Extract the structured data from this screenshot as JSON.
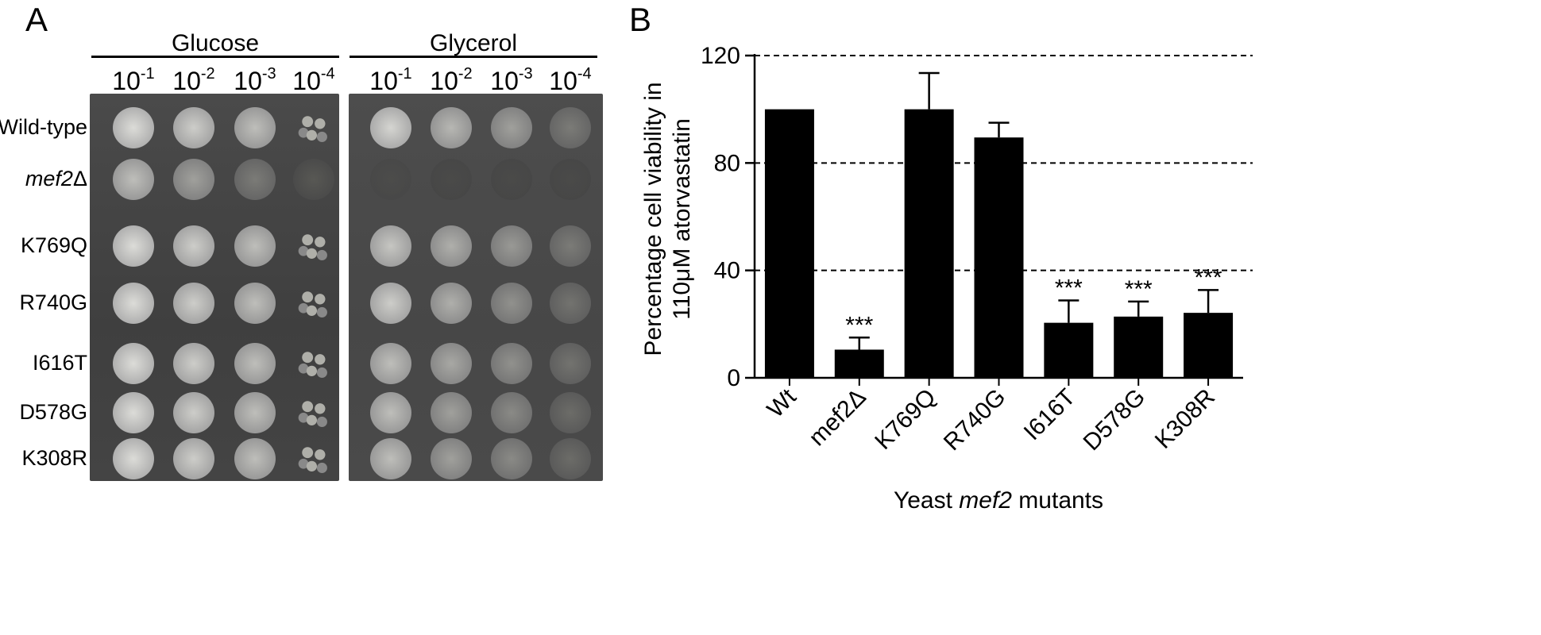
{
  "panels": {
    "a_label": "A",
    "b_label": "B"
  },
  "plate_figure": {
    "conditions": [
      "Glucose",
      "Glycerol"
    ],
    "dilution_base": "10",
    "dilution_exponents": [
      "-1",
      "-2",
      "-3",
      "-4"
    ],
    "strains": [
      {
        "prefix": "Wild-type",
        "italic": "",
        "suffix": ""
      },
      {
        "prefix": "",
        "italic": "mef2",
        "suffix": "Δ"
      },
      {
        "prefix": "K769Q",
        "italic": "",
        "suffix": ""
      },
      {
        "prefix": "R740G",
        "italic": "",
        "suffix": ""
      },
      {
        "prefix": "I616T",
        "italic": "",
        "suffix": ""
      },
      {
        "prefix": "D578G",
        "italic": "",
        "suffix": ""
      },
      {
        "prefix": "K308R",
        "italic": "",
        "suffix": ""
      }
    ],
    "growth_glucose": [
      [
        1.0,
        0.9,
        0.8,
        0.7
      ],
      [
        0.8,
        0.6,
        0.35,
        0.12
      ],
      [
        1.0,
        0.9,
        0.8,
        0.7
      ],
      [
        1.0,
        0.9,
        0.8,
        0.7
      ],
      [
        1.0,
        0.9,
        0.8,
        0.7
      ],
      [
        1.0,
        0.9,
        0.8,
        0.7
      ],
      [
        1.0,
        0.9,
        0.8,
        0.7
      ]
    ],
    "growth_glycerol": [
      [
        0.95,
        0.75,
        0.6,
        0.35
      ],
      [
        0.05,
        0.02,
        0.02,
        0.02
      ],
      [
        0.85,
        0.7,
        0.55,
        0.35
      ],
      [
        0.9,
        0.7,
        0.5,
        0.3
      ],
      [
        0.8,
        0.65,
        0.5,
        0.3
      ],
      [
        0.8,
        0.6,
        0.45,
        0.25
      ],
      [
        0.8,
        0.6,
        0.45,
        0.25
      ]
    ]
  },
  "chart_data": {
    "type": "bar",
    "categories": [
      "Wt",
      "mef2Δ",
      "K769Q",
      "R740G",
      "I616T",
      "D578G",
      "K308R"
    ],
    "values": [
      100,
      10.5,
      100,
      89.5,
      20.5,
      22.8,
      24.2
    ],
    "errors": [
      0,
      4.5,
      13.5,
      5.5,
      8.3,
      5.6,
      8.5
    ],
    "annotations": [
      "",
      "***",
      "",
      "",
      "***",
      "***",
      "***"
    ],
    "ylabel_line1": "Percentage cell viability in",
    "ylabel_line2": "110μM atorvastatin",
    "xlabel_prefix": "Yeast ",
    "xlabel_italic": "mef2",
    "xlabel_suffix": " mutants",
    "ylim": [
      0,
      120
    ],
    "yticks": [
      0,
      40,
      80,
      120
    ],
    "grid": "dashed at 40, 80, 120",
    "bar_color": "#000000"
  }
}
